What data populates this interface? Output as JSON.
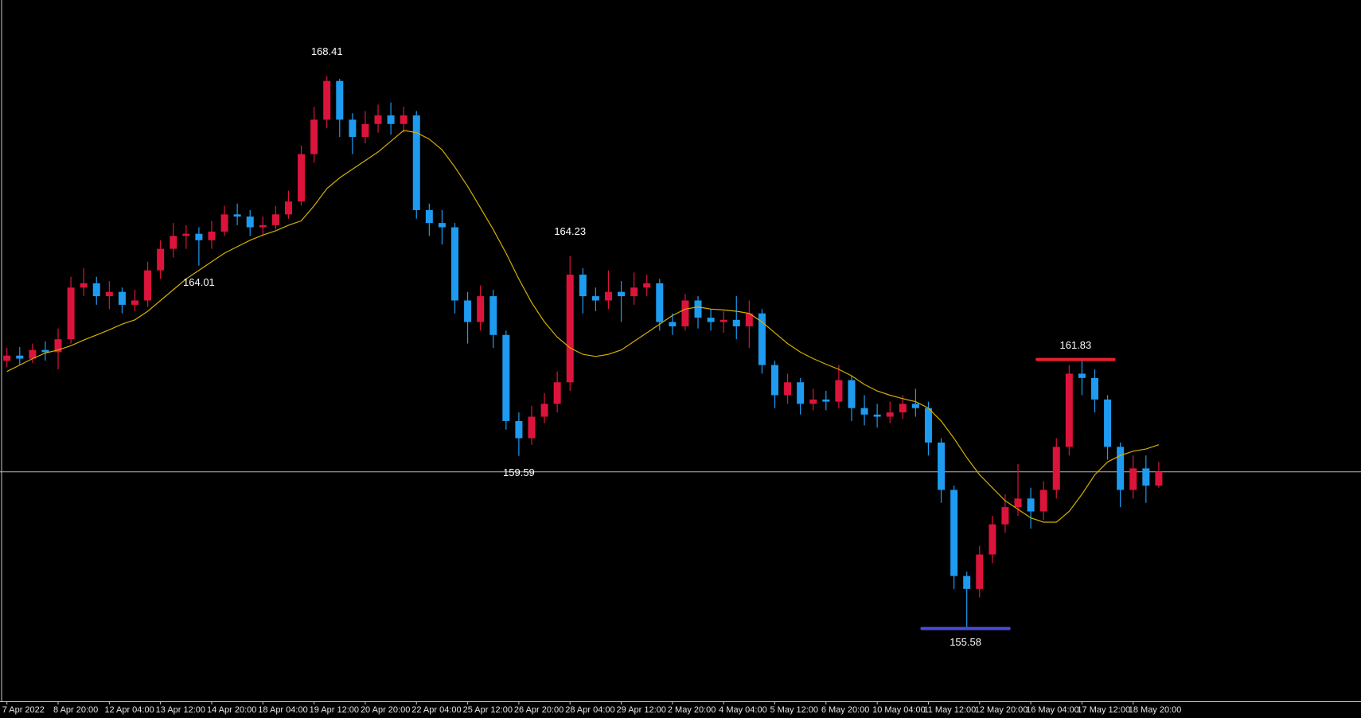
{
  "chart_data": {
    "type": "candlestick",
    "up_color": "#dc143c",
    "down_color": "#1e9bf0",
    "ylim": [
      153.89,
      170.18
    ],
    "open": [
      161.8,
      161.92,
      161.85,
      162.05,
      162.0,
      162.3,
      163.5,
      163.6,
      163.3,
      163.4,
      163.1,
      163.2,
      163.9,
      164.4,
      164.7,
      164.75,
      164.6,
      164.8,
      165.2,
      165.15,
      164.9,
      164.95,
      165.2,
      165.5,
      166.6,
      167.4,
      168.3,
      167.4,
      167.0,
      167.3,
      167.5,
      167.3,
      167.5,
      165.3,
      165.0,
      164.9,
      163.2,
      162.7,
      163.3,
      162.4,
      160.4,
      160.0,
      160.5,
      160.8,
      161.3,
      163.8,
      163.3,
      163.2,
      163.4,
      163.3,
      163.5,
      163.6,
      162.7,
      162.6,
      163.2,
      162.8,
      162.7,
      162.75,
      162.6,
      162.9,
      161.7,
      161.0,
      161.3,
      160.8,
      160.9,
      160.85,
      161.35,
      160.7,
      160.55,
      160.5,
      160.6,
      160.8,
      160.7,
      159.9,
      158.8,
      156.8,
      156.5,
      157.3,
      158.0,
      158.4,
      158.6,
      158.3,
      158.8,
      159.8,
      161.5,
      161.4,
      160.9,
      159.8,
      158.8,
      159.3,
      158.9
    ],
    "high": [
      162.1,
      162.12,
      162.2,
      162.25,
      162.55,
      163.75,
      163.95,
      163.75,
      163.65,
      163.5,
      163.45,
      164.1,
      164.6,
      165.0,
      164.95,
      164.9,
      165.05,
      165.4,
      165.45,
      165.3,
      165.15,
      165.4,
      165.75,
      166.8,
      167.7,
      168.41,
      168.35,
      167.55,
      167.6,
      167.75,
      167.8,
      167.7,
      167.6,
      165.45,
      165.3,
      165.0,
      163.4,
      163.55,
      163.45,
      162.5,
      160.6,
      160.75,
      161.05,
      161.55,
      164.23,
      163.95,
      163.5,
      163.9,
      163.65,
      163.85,
      163.8,
      163.7,
      162.9,
      163.35,
      163.3,
      163.0,
      162.95,
      163.3,
      163.2,
      163.0,
      161.8,
      161.5,
      161.4,
      161.15,
      161.1,
      161.7,
      161.45,
      161.0,
      160.8,
      160.85,
      161.0,
      161.15,
      160.85,
      160.0,
      158.9,
      156.9,
      157.5,
      158.2,
      158.7,
      159.4,
      158.85,
      159.0,
      160.0,
      161.7,
      161.83,
      161.6,
      161.0,
      159.9,
      159.6,
      159.6,
      159.45
    ],
    "low": [
      161.65,
      161.7,
      161.75,
      161.8,
      161.6,
      162.2,
      163.3,
      163.1,
      163.0,
      162.9,
      162.95,
      163.05,
      163.7,
      164.2,
      164.4,
      164.01,
      164.4,
      164.7,
      164.95,
      164.7,
      164.7,
      164.85,
      165.1,
      165.4,
      166.4,
      167.2,
      167.0,
      166.6,
      166.85,
      167.1,
      167.05,
      167.1,
      165.1,
      164.7,
      164.5,
      162.9,
      162.2,
      162.5,
      162.1,
      160.2,
      159.59,
      159.85,
      160.35,
      160.6,
      161.1,
      162.9,
      162.95,
      163.0,
      162.7,
      163.1,
      163.3,
      162.5,
      162.4,
      162.5,
      162.55,
      162.5,
      162.45,
      162.3,
      162.1,
      161.5,
      160.7,
      160.8,
      160.55,
      160.65,
      160.65,
      160.7,
      160.4,
      160.3,
      160.25,
      160.35,
      160.45,
      160.5,
      159.6,
      158.5,
      156.5,
      155.58,
      156.3,
      157.1,
      157.8,
      158.2,
      157.9,
      158.1,
      158.6,
      159.6,
      161.0,
      160.6,
      159.5,
      158.4,
      158.6,
      158.5,
      158.85
    ],
    "close": [
      161.92,
      161.85,
      162.05,
      162.0,
      162.3,
      163.5,
      163.6,
      163.3,
      163.4,
      163.1,
      163.2,
      163.9,
      164.4,
      164.7,
      164.75,
      164.6,
      164.8,
      165.2,
      165.15,
      164.9,
      164.95,
      165.2,
      165.5,
      166.6,
      167.4,
      168.3,
      167.4,
      167.0,
      167.3,
      167.5,
      167.3,
      167.5,
      165.3,
      165.0,
      164.9,
      163.2,
      162.7,
      163.3,
      162.4,
      160.4,
      160.0,
      160.5,
      160.8,
      161.3,
      163.8,
      163.3,
      163.2,
      163.4,
      163.3,
      163.5,
      163.6,
      162.7,
      162.6,
      163.2,
      162.8,
      162.7,
      162.75,
      162.6,
      162.9,
      161.7,
      161.0,
      161.3,
      160.8,
      160.9,
      160.85,
      161.35,
      160.7,
      160.55,
      160.5,
      160.6,
      160.8,
      160.7,
      159.9,
      158.8,
      156.8,
      156.5,
      157.3,
      158.0,
      158.4,
      158.6,
      158.3,
      158.8,
      159.8,
      161.5,
      161.4,
      160.9,
      159.8,
      158.8,
      159.3,
      158.9,
      159.22
    ],
    "ma_color": "#d4b000",
    "ma": [
      161.55,
      161.7,
      161.85,
      161.98,
      162.05,
      162.15,
      162.28,
      162.4,
      162.52,
      162.65,
      162.75,
      162.95,
      163.2,
      163.45,
      163.7,
      163.9,
      164.1,
      164.3,
      164.45,
      164.6,
      164.72,
      164.82,
      164.95,
      165.05,
      165.4,
      165.8,
      166.05,
      166.25,
      166.45,
      166.65,
      166.9,
      167.15,
      167.1,
      166.95,
      166.7,
      166.3,
      165.85,
      165.35,
      164.85,
      164.3,
      163.7,
      163.15,
      162.7,
      162.35,
      162.1,
      161.95,
      161.9,
      161.95,
      162.05,
      162.25,
      162.45,
      162.65,
      162.85,
      163.0,
      163.05,
      163.0,
      162.98,
      162.95,
      162.9,
      162.7,
      162.45,
      162.2,
      162.0,
      161.85,
      161.72,
      161.6,
      161.45,
      161.25,
      161.1,
      161.0,
      160.92,
      160.85,
      160.7,
      160.4,
      160.0,
      159.55,
      159.15,
      158.85,
      158.55,
      158.35,
      158.15,
      158.05,
      158.05,
      158.3,
      158.7,
      159.15,
      159.45,
      159.6,
      159.7,
      159.75,
      159.85
    ],
    "current_price_line": true,
    "xticks": [
      {
        "value": 0,
        "label": "7 Apr 2022"
      },
      {
        "value": 4,
        "label": "8 Apr 20:00"
      },
      {
        "value": 8,
        "label": "12 Apr 04:00"
      },
      {
        "value": 12,
        "label": "13 Apr 12:00"
      },
      {
        "value": 16,
        "label": "14 Apr 20:00"
      },
      {
        "value": 20,
        "label": "18 Apr 04:00"
      },
      {
        "value": 24,
        "label": "19 Apr 12:00"
      },
      {
        "value": 28,
        "label": "20 Apr 20:00"
      },
      {
        "value": 32,
        "label": "22 Apr 04:00"
      },
      {
        "value": 36,
        "label": "25 Apr 12:00"
      },
      {
        "value": 40,
        "label": "26 Apr 20:00"
      },
      {
        "value": 44,
        "label": "28 Apr 04:00"
      },
      {
        "value": 48,
        "label": "29 Apr 12:00"
      },
      {
        "value": 52,
        "label": "2 May 20:00"
      },
      {
        "value": 56,
        "label": "4 May 04:00"
      },
      {
        "value": 60,
        "label": "5 May 12:00"
      },
      {
        "value": 64,
        "label": "6 May 20:00"
      },
      {
        "value": 68,
        "label": "10 May 04:00"
      },
      {
        "value": 72,
        "label": "11 May 12:00"
      },
      {
        "value": 76,
        "label": "12 May 20:00"
      },
      {
        "value": 80,
        "label": "16 May 04:00"
      },
      {
        "value": 84,
        "label": "17 May 12:00"
      },
      {
        "value": 88,
        "label": "18 May 20:00"
      }
    ],
    "annotations": [
      {
        "value": 168.41,
        "bar": 25
      },
      {
        "value": 164.01,
        "bar": 15
      },
      {
        "value": 164.23,
        "bar": 44
      },
      {
        "value": 159.59,
        "bar": 40
      },
      {
        "value": 161.83,
        "bar": 84,
        "level": {
          "color": "#e8202e",
          "from": 80.5,
          "to": 86.5
        }
      },
      {
        "value": 155.58,
        "bar": 75,
        "level": {
          "color": "#4a4ad8",
          "from": 71.5,
          "to": 78.3
        }
      }
    ]
  }
}
